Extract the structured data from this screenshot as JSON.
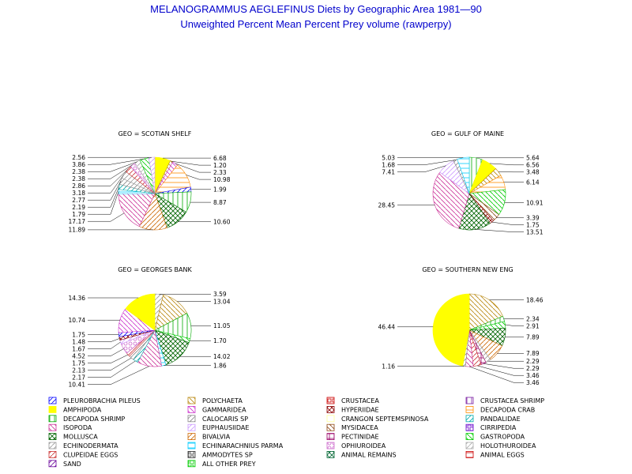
{
  "title": "MELANOGRAMMUS AEGLEFINUS Diets by Geographic Area 1981—90",
  "subtitle": "Unweighted Percent Mean Percent Prey  volume (rawperpy)",
  "chart_data": {
    "type": "pie",
    "legend": [
      {
        "name": "PLEUROBRACHIA PILEUS",
        "color": "#0000ff",
        "pattern": "diag1"
      },
      {
        "name": "POLYCHAETA",
        "color": "#b8860b",
        "pattern": "diag2"
      },
      {
        "name": "CRUSTACEA",
        "color": "#cc0000",
        "pattern": "box"
      },
      {
        "name": "CRUSTACEA SHRIMP",
        "color": "#7b1fa2",
        "pattern": "vert"
      },
      {
        "name": "AMPHIPODA",
        "color": "#ffff00",
        "pattern": "solid"
      },
      {
        "name": "GAMMARIDEA",
        "color": "#cc33cc",
        "pattern": "diag2"
      },
      {
        "name": "HYPERIIDAE",
        "color": "#8b0000",
        "pattern": "cross"
      },
      {
        "name": "DECAPODA CRAB",
        "color": "#ff8c00",
        "pattern": "horiz"
      },
      {
        "name": "DECAPODA SHRIMP",
        "color": "#00aa00",
        "pattern": "vert"
      },
      {
        "name": "CALOCARIS SP",
        "color": "#888888",
        "pattern": "diag1"
      },
      {
        "name": "CRANGON SEPTEMSPINOSA",
        "color": "#ffff99",
        "pattern": "none"
      },
      {
        "name": "PANDALIDAE",
        "color": "#00aaaa",
        "pattern": "diag1"
      },
      {
        "name": "ISOPODA",
        "color": "#cc3399",
        "pattern": "diag2"
      },
      {
        "name": "EUPHAUSIIDAE",
        "color": "#cc99ff",
        "pattern": "diag1"
      },
      {
        "name": "MYSIDACEA",
        "color": "#8b4513",
        "pattern": "diag2"
      },
      {
        "name": "CIRRIPEDIA",
        "color": "#6600cc",
        "pattern": "box"
      },
      {
        "name": "MOLLUSCA",
        "color": "#006400",
        "pattern": "cross"
      },
      {
        "name": "BIVALVIA",
        "color": "#cc6600",
        "pattern": "diag1"
      },
      {
        "name": "PECTINIDAE",
        "color": "#990066",
        "pattern": "grid"
      },
      {
        "name": "GASTROPODA",
        "color": "#00cc00",
        "pattern": "diag2"
      },
      {
        "name": "ECHINODERMATA",
        "color": "#999999",
        "pattern": "diag1"
      },
      {
        "name": "ECHINARACHNIUS PARMA",
        "color": "#00ccff",
        "pattern": "horiz"
      },
      {
        "name": "OPHIUROIDEA",
        "color": "#cc66cc",
        "pattern": "circle"
      },
      {
        "name": "HOLOTHUROIDEA",
        "color": "#aaaaaa",
        "pattern": "diag1"
      },
      {
        "name": "CLUPEIDAE EGGS",
        "color": "#cc3333",
        "pattern": "diag1"
      },
      {
        "name": "AMMODYTES SP",
        "color": "#333333",
        "pattern": "box"
      },
      {
        "name": "ANIMAL REMAINS",
        "color": "#006633",
        "pattern": "cross"
      },
      {
        "name": "ANIMAL EGGS",
        "color": "#cc0000",
        "pattern": "horiz"
      },
      {
        "name": "SAND",
        "color": "#660099",
        "pattern": "diag1"
      },
      {
        "name": "ALL OTHER PREY",
        "color": "#00cc00",
        "pattern": "box"
      }
    ],
    "pies": [
      {
        "title": "GEO = SCOTIAN SHELF",
        "slices": [
          {
            "label": "6.68",
            "value": 6.68,
            "cat": "AMPHIPODA"
          },
          {
            "label": "1.20",
            "value": 1.2,
            "cat": "POLYCHAETA"
          },
          {
            "label": "2.33",
            "value": 2.33,
            "cat": "GAMMARIDEA"
          },
          {
            "label": "10.98",
            "value": 10.98,
            "cat": "DECAPODA CRAB"
          },
          {
            "label": "1.99",
            "value": 1.99,
            "cat": "PLEUROBRACHIA PILEUS"
          },
          {
            "label": "8.87",
            "value": 8.87,
            "cat": "DECAPODA SHRIMP"
          },
          {
            "label": "10.60",
            "value": 10.6,
            "cat": "MOLLUSCA"
          },
          {
            "label": "11.89",
            "value": 11.89,
            "cat": "BIVALVIA"
          },
          {
            "label": "17.17",
            "value": 17.17,
            "cat": "ISOPODA"
          },
          {
            "label": "1.79",
            "value": 1.79,
            "cat": "ECHINARACHNIUS PARMA"
          },
          {
            "label": "2.19",
            "value": 2.19,
            "cat": "PANDALIDAE"
          },
          {
            "label": "2.77",
            "value": 2.77,
            "cat": "CALOCARIS SP"
          },
          {
            "label": "3.18",
            "value": 3.18,
            "cat": "ECHINODERMATA"
          },
          {
            "label": "2.86",
            "value": 2.86,
            "cat": "CLUPEIDAE EGGS"
          },
          {
            "label": "2.38",
            "value": 2.38,
            "cat": "OPHIUROIDEA"
          },
          {
            "label": "2.38",
            "value": 2.38,
            "cat": "HOLOTHUROIDEA"
          },
          {
            "label": "3.86",
            "value": 3.86,
            "cat": "GASTROPODA"
          },
          {
            "label": "2.56",
            "value": 2.56,
            "cat": "EUPHAUSIIDAE"
          }
        ]
      },
      {
        "title": "GEO = GULF OF MAINE",
        "slices": [
          {
            "label": "5.64",
            "value": 5.64,
            "cat": "DECAPODA SHRIMP"
          },
          {
            "label": "6.56",
            "value": 6.56,
            "cat": "AMPHIPODA"
          },
          {
            "label": "3.48",
            "value": 3.48,
            "cat": "POLYCHAETA"
          },
          {
            "label": "6.14",
            "value": 6.14,
            "cat": "DECAPODA CRAB"
          },
          {
            "label": "10.91",
            "value": 10.91,
            "cat": "GASTROPODA"
          },
          {
            "label": "3.39",
            "value": 3.39,
            "cat": "MYSIDACEA"
          },
          {
            "label": "1.75",
            "value": 1.75,
            "cat": "HYPERIIDAE"
          },
          {
            "label": "13.51",
            "value": 13.51,
            "cat": "MOLLUSCA"
          },
          {
            "label": "28.45",
            "value": 28.45,
            "cat": "ISOPODA"
          },
          {
            "label": "7.41",
            "value": 7.41,
            "cat": "EUPHAUSIIDAE"
          },
          {
            "label": "1.68",
            "value": 1.68,
            "cat": "CALOCARIS SP"
          },
          {
            "label": "5.03",
            "value": 5.03,
            "cat": "ECHINARACHNIUS PARMA"
          }
        ]
      },
      {
        "title": "GEO = GEORGES BANK",
        "slices": [
          {
            "label": "3.59",
            "value": 3.59,
            "cat": "ECHINODERMATA"
          },
          {
            "label": "13.04",
            "value": 13.04,
            "cat": "POLYCHAETA"
          },
          {
            "label": "11.05",
            "value": 11.05,
            "cat": "DECAPODA SHRIMP"
          },
          {
            "label": "1.70",
            "value": 1.7,
            "cat": "GASTROPODA"
          },
          {
            "label": "14.02",
            "value": 14.02,
            "cat": "MOLLUSCA"
          },
          {
            "label": "1.86",
            "value": 1.86,
            "cat": "ECHINARACHNIUS PARMA"
          },
          {
            "label": "10.41",
            "value": 10.41,
            "cat": "ISOPODA"
          },
          {
            "label": "2.17",
            "value": 2.17,
            "cat": "PANDALIDAE"
          },
          {
            "label": "2.13",
            "value": 2.13,
            "cat": "CALOCARIS SP"
          },
          {
            "label": "1.75",
            "value": 1.75,
            "cat": "CLUPEIDAE EGGS"
          },
          {
            "label": "4.52",
            "value": 4.52,
            "cat": "OPHIUROIDEA"
          },
          {
            "label": "1.67",
            "value": 1.67,
            "cat": "EUPHAUSIIDAE"
          },
          {
            "label": "1.48",
            "value": 1.48,
            "cat": "HYPERIIDAE"
          },
          {
            "label": "1.75",
            "value": 1.75,
            "cat": "PLEUROBRACHIA PILEUS"
          },
          {
            "label": "10.74",
            "value": 10.74,
            "cat": "GAMMARIDEA"
          },
          {
            "label": "14.36",
            "value": 14.36,
            "cat": "AMPHIPODA"
          }
        ]
      },
      {
        "title": "GEO = SOUTHERN NEW ENG",
        "slices": [
          {
            "label": "18.46",
            "value": 18.46,
            "cat": "POLYCHAETA"
          },
          {
            "label": "2.34",
            "value": 2.34,
            "cat": "DECAPODA SHRIMP"
          },
          {
            "label": "2.91",
            "value": 2.91,
            "cat": "GASTROPODA"
          },
          {
            "label": "7.89",
            "value": 7.89,
            "cat": "MOLLUSCA"
          },
          {
            "label": "7.89",
            "value": 7.89,
            "cat": "BIVALVIA"
          },
          {
            "label": "2.29",
            "value": 2.29,
            "cat": "ECHINODERMATA"
          },
          {
            "label": "2.29",
            "value": 2.29,
            "cat": "PECTINIDAE"
          },
          {
            "label": "3.46",
            "value": 3.46,
            "cat": "CLUPEIDAE EGGS"
          },
          {
            "label": "3.46",
            "value": 3.46,
            "cat": "ISOPODA"
          },
          {
            "label": "1.16",
            "value": 1.16,
            "cat": "CALOCARIS SP"
          },
          {
            "label": "46.44",
            "value": 46.44,
            "cat": "AMPHIPODA"
          }
        ]
      }
    ]
  }
}
